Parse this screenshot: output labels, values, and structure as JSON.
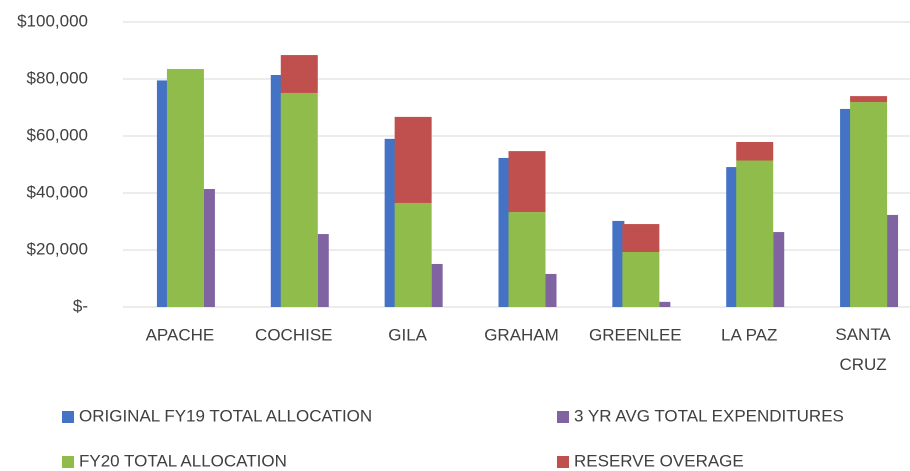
{
  "chart_data": {
    "type": "bar",
    "categories": [
      "APACHE",
      "COCHISE",
      "GILA",
      "GRAHAM",
      "GREENLEE",
      "LA PAZ",
      "SANTA CRUZ"
    ],
    "series": [
      {
        "name": "ORIGINAL FY19 TOTAL ALLOCATION",
        "color": "#4472c4",
        "values": [
          79500,
          81400,
          59000,
          52300,
          30200,
          49100,
          69500
        ]
      },
      {
        "name": "FY20 TOTAL ALLOCATION",
        "color": "#8fbc4a",
        "values": [
          83500,
          75100,
          36500,
          33300,
          19300,
          51400,
          71900
        ],
        "stack": "fy20"
      },
      {
        "name": "RESERVE OVERAGE",
        "color": "#c0504d",
        "values": [
          0,
          13300,
          30200,
          21400,
          9800,
          6500,
          2100
        ],
        "stack": "fy20"
      },
      {
        "name": "3 YR AVG TOTAL EXPENDITURES",
        "color": "#8064a2",
        "values": [
          41400,
          25600,
          15100,
          11600,
          1800,
          26300,
          32300
        ]
      }
    ],
    "ylim": [
      0,
      100000
    ],
    "yticks": [
      {
        "value": 0,
        "label": "$-"
      },
      {
        "value": 20000,
        "label": "$20,000"
      },
      {
        "value": 40000,
        "label": "$40,000"
      },
      {
        "value": 60000,
        "label": "$60,000"
      },
      {
        "value": 80000,
        "label": "$80,000"
      },
      {
        "value": 100000,
        "label": "$100,000"
      }
    ],
    "grid": true
  }
}
